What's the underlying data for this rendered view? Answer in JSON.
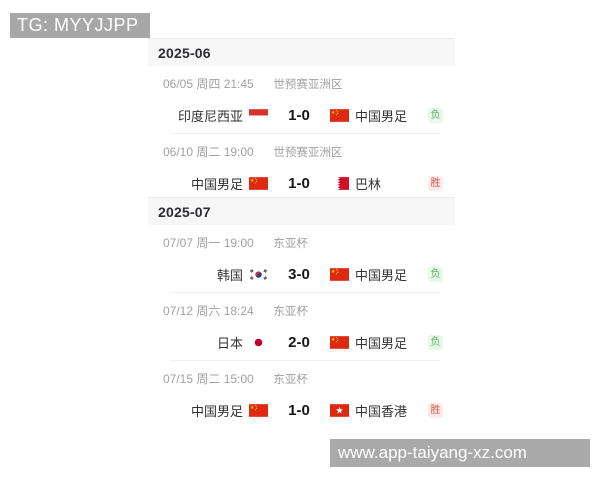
{
  "overlays": {
    "top_banner": "TG: MYYJJPP",
    "bottom_banner": "www.app-taiyang-xz.com"
  },
  "colors": {
    "banner_bg": "#a8a8a8",
    "section_header_bg": "#f7f7f8",
    "win_text": "#d9544d",
    "win_bg": "#fbecec",
    "loss_text": "#54b35c",
    "loss_bg": "#e9f7ea",
    "flag_red": "#de2910"
  },
  "sections": [
    {
      "month": "2025-06",
      "matches": [
        {
          "date": "06/05 周四 21:45",
          "competition": "世预赛亚洲区",
          "home": {
            "name": "印度尼西亚",
            "flag": "indonesia"
          },
          "score": "1-0",
          "away": {
            "name": "中国男足",
            "flag": "china"
          },
          "result": {
            "label": "负",
            "type": "loss"
          }
        },
        {
          "date": "06/10 周二 19:00",
          "competition": "世预赛亚洲区",
          "home": {
            "name": "中国男足",
            "flag": "china"
          },
          "score": "1-0",
          "away": {
            "name": "巴林",
            "flag": "bahrain"
          },
          "result": {
            "label": "胜",
            "type": "win"
          }
        }
      ]
    },
    {
      "month": "2025-07",
      "matches": [
        {
          "date": "07/07 周一 19:00",
          "competition": "东亚杯",
          "home": {
            "name": "韩国",
            "flag": "korea"
          },
          "score": "3-0",
          "away": {
            "name": "中国男足",
            "flag": "china"
          },
          "result": {
            "label": "负",
            "type": "loss"
          }
        },
        {
          "date": "07/12 周六 18:24",
          "competition": "东亚杯",
          "home": {
            "name": "日本",
            "flag": "japan"
          },
          "score": "2-0",
          "away": {
            "name": "中国男足",
            "flag": "china"
          },
          "result": {
            "label": "负",
            "type": "loss"
          }
        },
        {
          "date": "07/15 周二 15:00",
          "competition": "东亚杯",
          "home": {
            "name": "中国男足",
            "flag": "china"
          },
          "score": "1-0",
          "away": {
            "name": "中国香港",
            "flag": "hongkong"
          },
          "result": {
            "label": "胜",
            "type": "win"
          }
        }
      ]
    }
  ]
}
